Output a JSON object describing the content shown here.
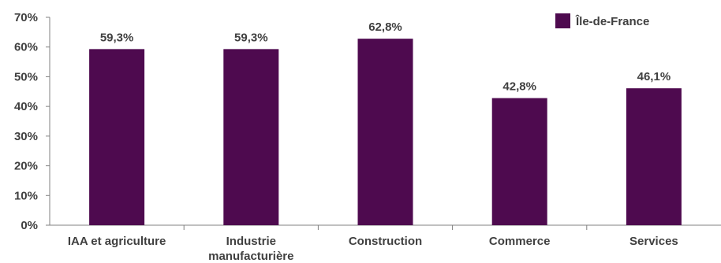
{
  "chart_data": {
    "type": "bar",
    "categories": [
      [
        "IAA et agriculture"
      ],
      [
        "Industrie",
        "manufacturière"
      ],
      [
        "Construction"
      ],
      [
        "Commerce"
      ],
      [
        "Services"
      ]
    ],
    "series": [
      {
        "name": "Île-de-France",
        "values": [
          59.3,
          59.3,
          62.8,
          42.8,
          46.1
        ],
        "labels": [
          "59,3%",
          "59,3%",
          "62,8%",
          "42,8%",
          "46,1%"
        ],
        "color": "#4e0a4f"
      }
    ],
    "y_ticks": [
      {
        "value": 0,
        "label": "0%"
      },
      {
        "value": 10,
        "label": "10%"
      },
      {
        "value": 20,
        "label": "20%"
      },
      {
        "value": 30,
        "label": "30%"
      },
      {
        "value": 40,
        "label": "40%"
      },
      {
        "value": 50,
        "label": "50%"
      },
      {
        "value": 60,
        "label": "60%"
      },
      {
        "value": 70,
        "label": "70%"
      }
    ],
    "ylim": [
      0,
      70
    ],
    "grid": false,
    "legend": "top-right",
    "axis_color": "#808080"
  }
}
